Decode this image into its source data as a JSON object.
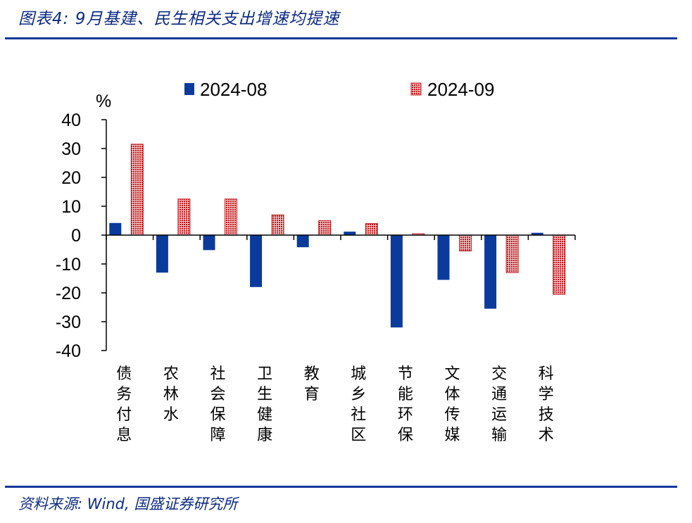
{
  "title": "图表4:  9月基建、民生相关支出增速均提速",
  "source": "资料来源:  Wind, 国盛证券研究所",
  "colors": {
    "header_blue": "#12379a",
    "series_2024_08": "#0a3a9c",
    "series_2024_09": "#c01b1f",
    "series_2024_09_fill_light": "#f3c9c9"
  },
  "chart_data": {
    "type": "bar",
    "unit_label": "%",
    "categories": [
      "债务付息",
      "农林水",
      "社会保障",
      "卫生健康",
      "教育",
      "城乡社区",
      "节能环保",
      "文体传媒",
      "交通运输",
      "科学技术"
    ],
    "series": [
      {
        "name": "2024-08",
        "values": [
          4.2,
          -13,
          -5.2,
          -18,
          -4.2,
          1.2,
          -32,
          -15.5,
          -25.5,
          0.8
        ]
      },
      {
        "name": "2024-09",
        "values": [
          31.5,
          12.5,
          12.5,
          7,
          5,
          4,
          0.5,
          -5.5,
          -13,
          -20.5
        ]
      }
    ],
    "ylim": [
      -40,
      40
    ],
    "yticks": [
      "40",
      "30",
      "20",
      "10",
      "0",
      "-10",
      "-20",
      "-30",
      "-40"
    ],
    "legend_position": "top",
    "grid": false
  }
}
